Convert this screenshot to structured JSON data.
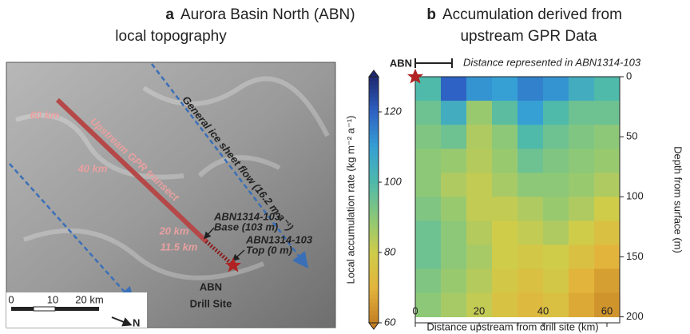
{
  "map": {
    "panel_label": "a",
    "title": [
      "Aurora Basin North (ABN)",
      "local topography"
    ],
    "flow_label": "General ice sheet flow (16.2 m a⁻¹)",
    "transect_label": "Upstream GPR transect",
    "distance_labels": [
      "60 km",
      "40 km",
      "20 km",
      "11.5 km"
    ],
    "core_base": [
      "ABN1314-103",
      "Base (103 m)"
    ],
    "core_top": [
      "ABN1314-103",
      "Top (0 m)"
    ],
    "site": [
      "ABN",
      "Drill Site"
    ],
    "scale_labels": [
      "0",
      "10",
      "20 km"
    ],
    "north": "N"
  },
  "chart_data": {
    "type": "heatmap",
    "panel_label": "b",
    "title": [
      "Accumulation derived from",
      "upstream GPR Data"
    ],
    "x_label": "Distance upstream from drill site (km)",
    "y_label": "Depth from surface (m)",
    "colorbar_label": "Local accumulation rate (kg m⁻² a⁻¹)",
    "site_label": "ABN",
    "bracket_label": "Distance represented in ABN1314-103",
    "bracket_range": [
      0,
      11.5
    ],
    "x": [
      4,
      12,
      20,
      28,
      36,
      44,
      52,
      60
    ],
    "y": [
      10,
      30,
      50,
      70,
      90,
      110,
      130,
      150,
      170,
      190
    ],
    "values": [
      [
        100,
        120,
        112,
        110,
        115,
        112,
        105,
        100
      ],
      [
        95,
        105,
        88,
        98,
        110,
        100,
        95,
        95
      ],
      [
        92,
        95,
        85,
        90,
        100,
        95,
        92,
        90
      ],
      [
        90,
        88,
        84,
        88,
        95,
        92,
        90,
        88
      ],
      [
        90,
        85,
        82,
        86,
        90,
        90,
        88,
        85
      ],
      [
        92,
        88,
        82,
        82,
        85,
        88,
        85,
        80
      ],
      [
        95,
        90,
        84,
        80,
        82,
        85,
        80,
        75
      ],
      [
        95,
        90,
        86,
        80,
        78,
        80,
        75,
        70
      ],
      [
        92,
        88,
        84,
        78,
        75,
        78,
        70,
        66
      ],
      [
        90,
        86,
        82,
        76,
        72,
        75,
        68,
        64
      ]
    ],
    "xlim": [
      0,
      64
    ],
    "xticks": [
      0,
      20,
      40,
      60
    ],
    "ylim": [
      0,
      205
    ],
    "yticks": [
      0,
      50,
      100,
      150,
      200
    ],
    "clim": [
      60,
      130
    ],
    "cticks": [
      60,
      80,
      100,
      120
    ],
    "colormap": [
      "#c47f22",
      "#e2b43c",
      "#cfcc4a",
      "#8cc878",
      "#4fb9aa",
      "#36a0d4",
      "#2e62c4",
      "#1e2870"
    ]
  }
}
